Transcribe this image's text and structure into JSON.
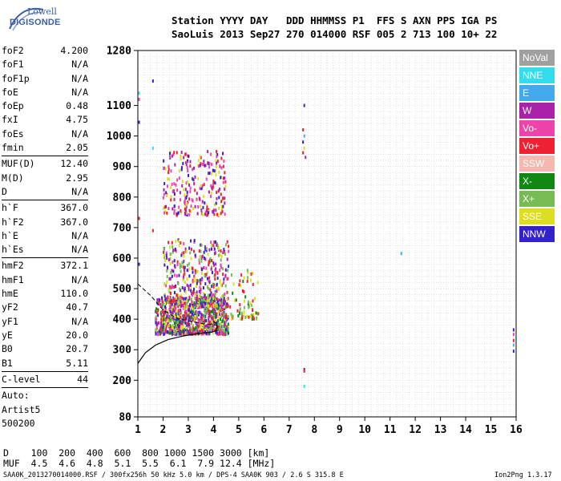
{
  "logo": {
    "line1": "Lowell",
    "line2": "DIGISONDE"
  },
  "header": {
    "line1": "Station YYYY DAY   DDD HHMMSS P1  FFS S AXN PPS IGA PS",
    "line2": "SaoLuis 2013 Sep27 270 014000 RSF 005 2 713 100 10+ 22"
  },
  "params": {
    "group1": [
      {
        "k": "foF2",
        "v": "4.200"
      },
      {
        "k": "foF1",
        "v": "N/A"
      },
      {
        "k": "foF1p",
        "v": "N/A"
      },
      {
        "k": "foE",
        "v": "N/A"
      },
      {
        "k": "foEp",
        "v": "0.48"
      },
      {
        "k": "fxI",
        "v": "4.75"
      },
      {
        "k": "foEs",
        "v": "N/A"
      },
      {
        "k": "fmin",
        "v": "2.05"
      }
    ],
    "group2": [
      {
        "k": "MUF(D)",
        "v": "12.40"
      },
      {
        "k": "M(D)",
        "v": "2.95"
      },
      {
        "k": "D",
        "v": "N/A"
      }
    ],
    "group3": [
      {
        "k": "h`F",
        "v": "367.0"
      },
      {
        "k": "h`F2",
        "v": "367.0"
      },
      {
        "k": "h`E",
        "v": "N/A"
      },
      {
        "k": "h`Es",
        "v": "N/A"
      }
    ],
    "group4": [
      {
        "k": "hmF2",
        "v": "372.1"
      },
      {
        "k": "hmF1",
        "v": "N/A"
      },
      {
        "k": "hmE",
        "v": "110.0"
      },
      {
        "k": "yF2",
        "v": "40.7"
      },
      {
        "k": "yF1",
        "v": "N/A"
      },
      {
        "k": "yE",
        "v": "20.0"
      },
      {
        "k": "B0",
        "v": "20.7"
      },
      {
        "k": "B1",
        "v": "5.11"
      }
    ],
    "group5": [
      {
        "k": "C-level",
        "v": "44"
      }
    ],
    "auto_lines": [
      "Auto:",
      "Artist5",
      "500200"
    ]
  },
  "legend": [
    {
      "label": "NoVal",
      "color": "#a0a0a0"
    },
    {
      "label": "NNE",
      "color": "#33ddee"
    },
    {
      "label": "E",
      "color": "#44aaee"
    },
    {
      "label": "W",
      "color": "#aa22aa"
    },
    {
      "label": "Vo-",
      "color": "#ee44aa"
    },
    {
      "label": "Vo+",
      "color": "#ee2233"
    },
    {
      "label": "SSW",
      "color": "#f4b8b0"
    },
    {
      "label": "X-",
      "color": "#118811"
    },
    {
      "label": "X+",
      "color": "#77bb55"
    },
    {
      "label": "SSE",
      "color": "#dddd22"
    },
    {
      "label": "NNW",
      "color": "#3322cc"
    }
  ],
  "bottom": {
    "d_line": "D    100  200  400  600  800 1000 1500 3000 [km]",
    "muf_line": "MUF  4.5  4.6  4.8  5.1  5.5  6.1  7.9 12.4 [MHz]"
  },
  "footer": {
    "text": "SAA0K_2013270014000.RSF / 300fx256h 50 kHz 5.0 km / DPS-4 SAA0K 903 / 2.6 S 315.8 E",
    "version": "Ion2Png 1.3.17"
  },
  "chart_data": {
    "type": "scatter",
    "xlim": [
      1,
      16
    ],
    "ylim": [
      80,
      1280
    ],
    "x_ticks": [
      1,
      2,
      3,
      4,
      5,
      6,
      7,
      8,
      9,
      10,
      11,
      12,
      13,
      14,
      15,
      16
    ],
    "y_ticks": [
      80,
      200,
      300,
      400,
      500,
      600,
      700,
      800,
      900,
      1000,
      1100,
      1280
    ],
    "xlabel": "",
    "ylabel": "",
    "grid": true,
    "legend_position": "right",
    "clusters": [
      {
        "name": "F-trace-core",
        "x": [
          1.7,
          4.6
        ],
        "y": [
          350,
          470
        ],
        "n": 900,
        "colors": [
          "#ee2233",
          "#ee44aa",
          "#aa22aa",
          "#dddd22",
          "#118811",
          "#77bb55",
          "#3322cc"
        ]
      },
      {
        "name": "F-spread",
        "x": [
          2.0,
          4.6
        ],
        "y": [
          440,
          660
        ],
        "n": 420,
        "colors": [
          "#dddd22",
          "#ee44aa",
          "#aa22aa",
          "#77bb55",
          "#ee2233",
          "#3322cc"
        ]
      },
      {
        "name": "F-upper",
        "x": [
          4.6,
          5.8
        ],
        "y": [
          400,
          560
        ],
        "n": 70,
        "colors": [
          "#77bb55",
          "#118811",
          "#ee2233",
          "#dddd22"
        ]
      },
      {
        "name": "2F-trace",
        "x": [
          2.0,
          4.5
        ],
        "y": [
          740,
          950
        ],
        "n": 260,
        "colors": [
          "#dddd22",
          "#ee44aa",
          "#aa22aa",
          "#3322cc",
          "#ee2233"
        ]
      }
    ],
    "points": [
      {
        "x": 1.05,
        "y": 1045,
        "c": "#3322cc"
      },
      {
        "x": 1.05,
        "y": 1120,
        "c": "#ee44aa"
      },
      {
        "x": 1.05,
        "y": 1140,
        "c": "#33ddee"
      },
      {
        "x": 1.6,
        "y": 1180,
        "c": "#3322cc"
      },
      {
        "x": 1.6,
        "y": 960,
        "c": "#33ddee"
      },
      {
        "x": 1.05,
        "y": 580,
        "c": "#3322cc"
      },
      {
        "x": 1.05,
        "y": 730,
        "c": "#ee2233"
      },
      {
        "x": 1.6,
        "y": 690,
        "c": "#ee2233"
      },
      {
        "x": 7.6,
        "y": 1100,
        "c": "#3322cc"
      },
      {
        "x": 7.55,
        "y": 1020,
        "c": "#ee2233"
      },
      {
        "x": 7.6,
        "y": 1000,
        "c": "#44aaee"
      },
      {
        "x": 7.55,
        "y": 980,
        "c": "#3322cc"
      },
      {
        "x": 7.6,
        "y": 960,
        "c": "#dddd22"
      },
      {
        "x": 7.55,
        "y": 945,
        "c": "#ee2233"
      },
      {
        "x": 7.65,
        "y": 930,
        "c": "#aa22aa"
      },
      {
        "x": 7.6,
        "y": 235,
        "c": "#3322cc"
      },
      {
        "x": 7.6,
        "y": 230,
        "c": "#ee2233"
      },
      {
        "x": 7.6,
        "y": 180,
        "c": "#33ddee"
      },
      {
        "x": 11.45,
        "y": 615,
        "c": "#44aaee"
      },
      {
        "x": 15.9,
        "y": 365,
        "c": "#3322cc"
      },
      {
        "x": 15.9,
        "y": 350,
        "c": "#ee44aa"
      },
      {
        "x": 15.9,
        "y": 330,
        "c": "#ee2233"
      },
      {
        "x": 15.9,
        "y": 315,
        "c": "#44aaee"
      },
      {
        "x": 15.9,
        "y": 295,
        "c": "#3322cc"
      }
    ],
    "profile_solid": [
      [
        1,
        255
      ],
      [
        1.3,
        290
      ],
      [
        1.7,
        315
      ],
      [
        2.2,
        333
      ],
      [
        2.8,
        345
      ],
      [
        3.4,
        353
      ],
      [
        3.9,
        357
      ],
      [
        4.1,
        362
      ],
      [
        4.15,
        375
      ],
      [
        4.1,
        388
      ],
      [
        4.0,
        393
      ]
    ],
    "profile_dashed": [
      [
        1,
        515
      ],
      [
        1.5,
        478
      ],
      [
        2.0,
        430
      ],
      [
        2.5,
        405
      ],
      [
        3.0,
        394
      ],
      [
        3.6,
        385
      ],
      [
        4.0,
        382
      ],
      [
        4.2,
        378
      ]
    ]
  }
}
